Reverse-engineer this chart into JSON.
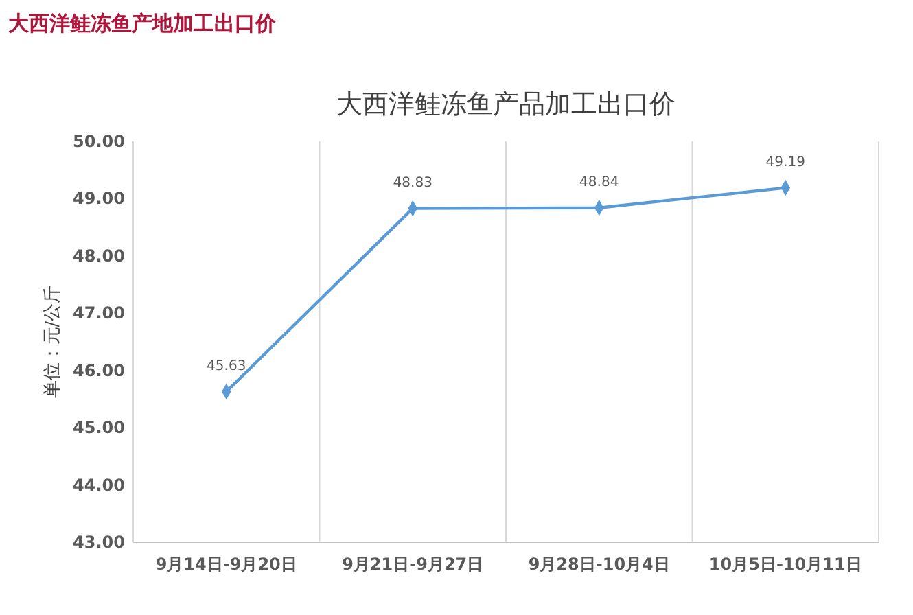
{
  "chart_data": {
    "type": "line",
    "title": "大西洋鲑冻鱼产地加工出口价",
    "subtitle": "大西洋鲑冻鱼产品加工出口价",
    "ylabel": "单位：元/公斤",
    "categories": [
      "9月14日-9月20日",
      "9月21日-9月27日",
      "9月28日-10月4日",
      "10月5日-10月11日"
    ],
    "series": [
      {
        "color": "#5b9bd5",
        "values": [
          45.63,
          48.83,
          48.84,
          49.19
        ]
      }
    ],
    "ylim": [
      43,
      50
    ],
    "yticks": [
      {
        "value": 43,
        "label": "43.00"
      },
      {
        "value": 44,
        "label": "44.00"
      },
      {
        "value": 45,
        "label": "45.00"
      },
      {
        "value": 46,
        "label": "46.00"
      },
      {
        "value": 47,
        "label": "47.00"
      },
      {
        "value": 48,
        "label": "48.00"
      },
      {
        "value": 49,
        "label": "49.00"
      },
      {
        "value": 50,
        "label": "50.00"
      }
    ],
    "grid": "x",
    "marker": "diamond",
    "line_style": "solid",
    "data_labels": true
  }
}
